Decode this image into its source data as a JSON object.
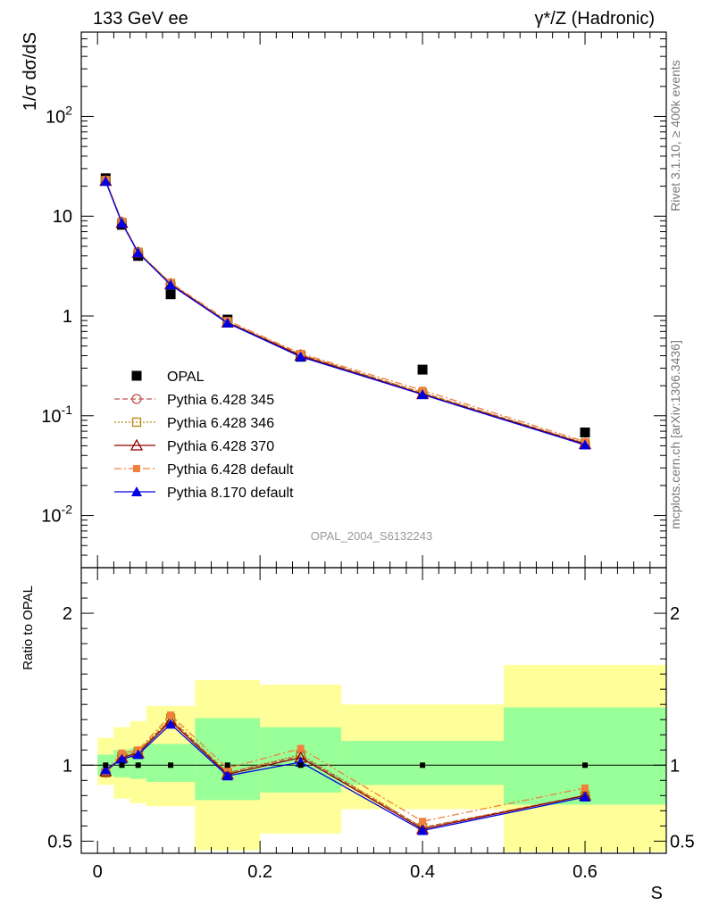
{
  "header": {
    "left": "133 GeV ee",
    "right_sup": "γ*/Z",
    "right_rest": "(Hadronic)"
  },
  "side": {
    "rivet": "Rivet 3.1.10, ≥ 400k events",
    "mcplots": "mcplots.cern.ch [arXiv:1306.3436]"
  },
  "chart_data": [
    {
      "type": "scatter",
      "panel": "main",
      "title": "",
      "ylabel": "1/σ dσ/dS",
      "xlabel": "S",
      "yscale": "log",
      "ylim": [
        0.003,
        700
      ],
      "xlim": [
        -0.02,
        0.7
      ],
      "y_tick_labels": [
        "10^-2",
        "10^-1",
        "1",
        "10",
        "10^2"
      ],
      "watermark": "OPAL_2004_S6132243",
      "legend_position": "left-middle",
      "x": [
        0.01,
        0.03,
        0.05,
        0.09,
        0.16,
        0.25,
        0.4,
        0.6
      ],
      "series": [
        {
          "name": "OPAL",
          "color": "#000000",
          "marker": "square",
          "values": [
            24,
            8.2,
            4.0,
            1.65,
            0.92,
            0.39,
            0.29,
            0.068
          ]
        },
        {
          "name": "Pythia 6.428 345",
          "color": "#c0504d",
          "marker": "circle-open",
          "dash": "6,3",
          "values": [
            22.8,
            8.7,
            4.35,
            2.1,
            0.87,
            0.41,
            0.17,
            0.053
          ]
        },
        {
          "name": "Pythia 6.428 346",
          "color": "#b8860b",
          "marker": "square-open",
          "dash": "2,2",
          "values": [
            22.8,
            8.7,
            4.35,
            2.12,
            0.87,
            0.41,
            0.17,
            0.053
          ]
        },
        {
          "name": "Pythia 6.428 370",
          "color": "#8b0000",
          "marker": "triangle-open",
          "dash": "",
          "values": [
            22.6,
            8.6,
            4.3,
            2.08,
            0.86,
            0.4,
            0.165,
            0.052
          ]
        },
        {
          "name": "Pythia 6.428 default",
          "color": "#f0803c",
          "marker": "square-filled",
          "dash": "8,3,2,3",
          "values": [
            23.2,
            8.9,
            4.4,
            2.15,
            0.9,
            0.42,
            0.18,
            0.055
          ]
        },
        {
          "name": "Pythia 8.170 default",
          "color": "#0000e0",
          "marker": "triangle-filled",
          "dash": "",
          "values": [
            22.4,
            8.55,
            4.3,
            2.05,
            0.85,
            0.39,
            0.163,
            0.051
          ]
        }
      ]
    },
    {
      "type": "line",
      "panel": "ratio",
      "ylabel": "Ratio to OPAL",
      "xlabel": "S",
      "ylim": [
        0.42,
        2.3
      ],
      "xlim": [
        -0.02,
        0.7
      ],
      "x_tick_labels": [
        "0",
        "0.2",
        "0.4",
        "0.6"
      ],
      "y_tick_labels": [
        "0.5",
        "1",
        "2"
      ],
      "bands": {
        "bin_edges": [
          0.0,
          0.02,
          0.04,
          0.06,
          0.12,
          0.2,
          0.3,
          0.5,
          0.7
        ],
        "stat_color": "#99ff99",
        "total_color": "#ffff99",
        "stat_lo": [
          0.93,
          0.92,
          0.91,
          0.89,
          0.77,
          0.82,
          0.87,
          0.74
        ],
        "stat_hi": [
          1.07,
          1.1,
          1.11,
          1.14,
          1.31,
          1.25,
          1.16,
          1.38
        ],
        "total_lo": [
          0.87,
          0.78,
          0.75,
          0.73,
          0.44,
          0.55,
          0.71,
          0.43
        ],
        "total_hi": [
          1.18,
          1.25,
          1.29,
          1.39,
          1.56,
          1.53,
          1.4,
          1.66
        ]
      },
      "x": [
        0.01,
        0.03,
        0.05,
        0.09,
        0.16,
        0.25,
        0.4,
        0.6
      ],
      "series": [
        {
          "name": "Pythia 6.428 345",
          "values": [
            0.95,
            1.06,
            1.09,
            1.3,
            0.95,
            1.06,
            0.59,
            0.8
          ]
        },
        {
          "name": "Pythia 6.428 346",
          "values": [
            0.95,
            1.06,
            1.09,
            1.31,
            0.95,
            1.07,
            0.59,
            0.8
          ]
        },
        {
          "name": "Pythia 6.428 370",
          "values": [
            0.96,
            1.05,
            1.08,
            1.29,
            0.94,
            1.05,
            0.58,
            0.8
          ]
        },
        {
          "name": "Pythia 6.428 default",
          "values": [
            0.96,
            1.08,
            1.1,
            1.33,
            0.98,
            1.11,
            0.63,
            0.85
          ]
        },
        {
          "name": "Pythia 8.170 default",
          "values": [
            0.97,
            1.04,
            1.07,
            1.27,
            0.93,
            1.02,
            0.57,
            0.79
          ]
        }
      ]
    }
  ]
}
